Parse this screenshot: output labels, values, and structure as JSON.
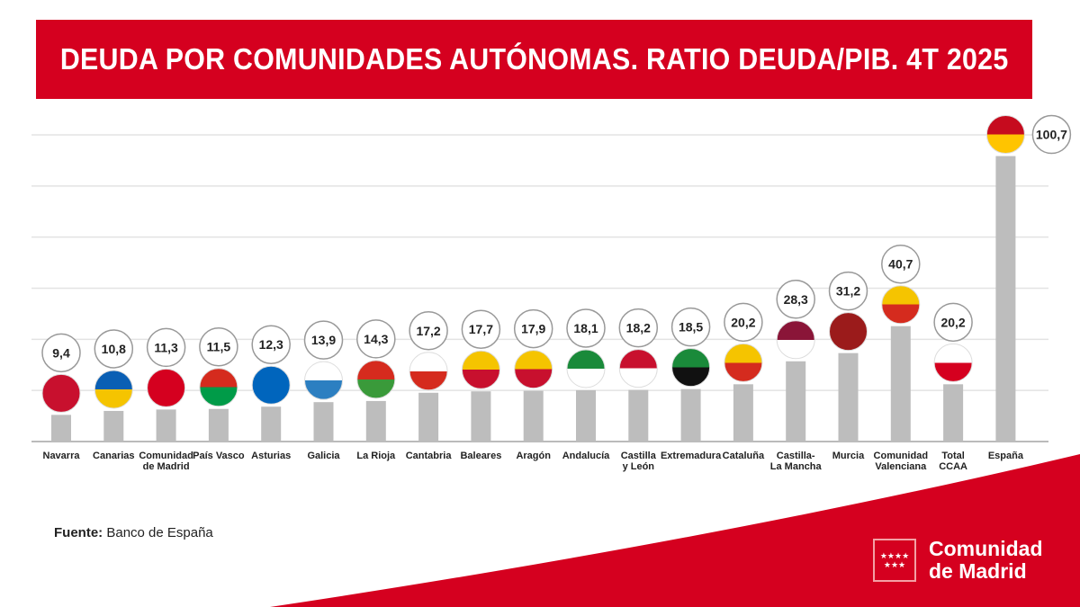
{
  "title": "DEUDA POR COMUNIDADES AUTÓNOMAS. RATIO DEUDA/PIB. 4T 2025",
  "source_label": "Fuente:",
  "source_text": "Banco de España",
  "logo": {
    "line1": "Comunidad",
    "line2": "de Madrid",
    "stars": "★★★★ ★★★"
  },
  "colors": {
    "brand_red": "#d5001f",
    "bar": "#bdbdbd",
    "grid": "#e3e3e3"
  },
  "chart_data": {
    "type": "bar",
    "title": "DEUDA POR COMUNIDADES AUTÓNOMAS. RATIO DEUDA/PIB. 4T 2025",
    "xlabel": "",
    "ylabel": "",
    "ylim": [
      0,
      105
    ],
    "grid": true,
    "categories": [
      [
        "Navarra"
      ],
      [
        "Canarias"
      ],
      [
        "Comunidad",
        "de Madrid"
      ],
      [
        "País Vasco"
      ],
      [
        "Asturias"
      ],
      [
        "Galicia"
      ],
      [
        "La Rioja"
      ],
      [
        "Cantabria"
      ],
      [
        "Baleares"
      ],
      [
        "Aragón"
      ],
      [
        "Andalucía"
      ],
      [
        "Castilla",
        "y León"
      ],
      [
        "Extremadura"
      ],
      [
        "Cataluña"
      ],
      [
        "Castilla-",
        "La Mancha"
      ],
      [
        "Murcia"
      ],
      [
        "Comunidad",
        "Valenciana"
      ],
      [
        "Total",
        "CCAA"
      ],
      [
        "España"
      ]
    ],
    "values": [
      9.4,
      10.8,
      11.3,
      11.5,
      12.3,
      13.9,
      14.3,
      17.2,
      17.7,
      17.9,
      18.1,
      18.2,
      18.5,
      20.2,
      28.3,
      31.2,
      40.7,
      20.2,
      100.7
    ],
    "value_labels": [
      "9,4",
      "10,8",
      "11,3",
      "11,5",
      "12,3",
      "13,9",
      "14,3",
      "17,2",
      "17,7",
      "17,9",
      "18,1",
      "18,2",
      "18,5",
      "20,2",
      "28,3",
      "31,2",
      "40,7",
      "20,2",
      "100,7"
    ],
    "flag_colors": [
      [
        "#c8102e",
        "#c8102e"
      ],
      [
        "#0a5fb4",
        "#f5c400"
      ],
      [
        "#d5001f",
        "#d5001f"
      ],
      [
        "#d52b1e",
        "#009b48"
      ],
      [
        "#0065bd",
        "#0065bd"
      ],
      [
        "#ffffff",
        "#2c7fc1"
      ],
      [
        "#d52b1e",
        "#3a9a3a"
      ],
      [
        "#ffffff",
        "#d52b1e"
      ],
      [
        "#f5c400",
        "#c8102e"
      ],
      [
        "#f5c400",
        "#c8102e"
      ],
      [
        "#1a8a3a",
        "#ffffff"
      ],
      [
        "#c8102e",
        "#ffffff"
      ],
      [
        "#1a8a3a",
        "#111111"
      ],
      [
        "#f5c400",
        "#d52b1e"
      ],
      [
        "#8a1538",
        "#ffffff"
      ],
      [
        "#9b1b1b",
        "#9b1b1b"
      ],
      [
        "#f5c400",
        "#d52b1e"
      ],
      [
        "#ffffff",
        "#d5001f"
      ],
      [
        "#c60b1e",
        "#ffc400"
      ]
    ]
  }
}
